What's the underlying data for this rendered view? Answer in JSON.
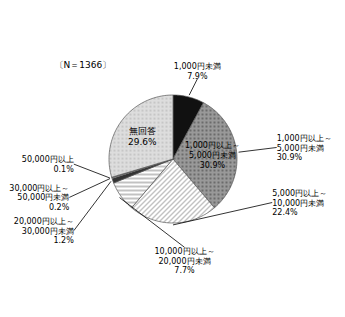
{
  "chart_data": {
    "type": "pie",
    "categories": [
      "1,000円未満",
      "1,000円以上～\n5,000円未満",
      "5,000円以上～\n10,000円未満",
      "10,000円以上～\n20,000円未満",
      "20,000円以上～\n30,000円未満",
      "30,000円以上～\n50,000円未満",
      "50,000円以上",
      "無回答"
    ],
    "values": [
      7.9,
      30.9,
      22.4,
      7.7,
      1.2,
      0.2,
      0.1,
      29.6
    ],
    "value_labels": [
      "7.9%",
      "30.9%",
      "22.4%",
      "7.7%",
      "1.2%",
      "0.2%",
      "0.1%",
      "29.6%"
    ],
    "colors": [
      "#111111",
      "#999999",
      "#ffffff",
      "#ffffff",
      "#333333",
      "#ffffff",
      "#bbbbbb",
      "#dddddd"
    ],
    "data_labels": true,
    "annotations": [
      "〔N＝1366〕"
    ]
  }
}
